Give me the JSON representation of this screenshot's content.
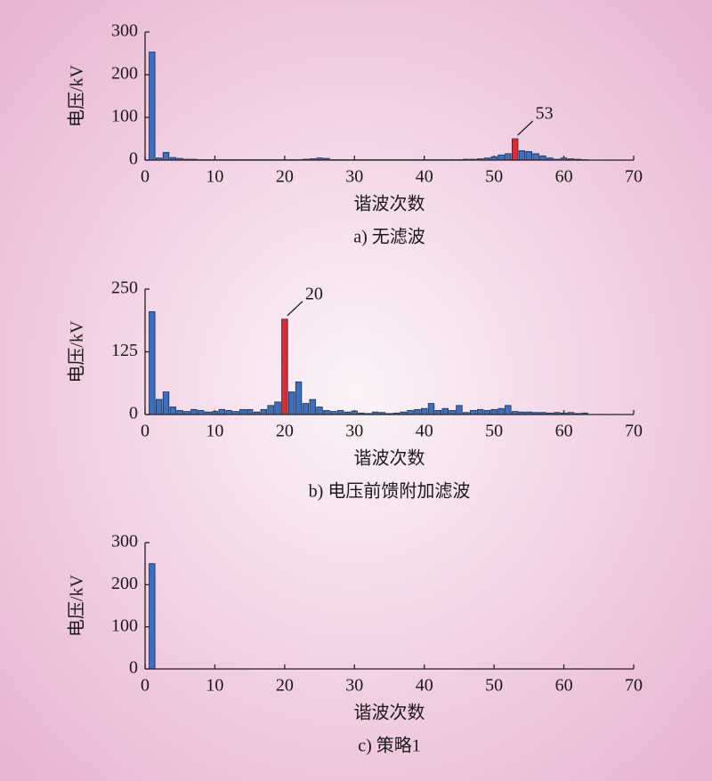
{
  "chart_data": [
    {
      "type": "bar",
      "caption": "a) 无滤波",
      "xlabel": "谐波次数",
      "ylabel": "电压/kV",
      "x": [
        1,
        2,
        3,
        4,
        5,
        6,
        7,
        8,
        9,
        10,
        11,
        12,
        13,
        14,
        15,
        16,
        17,
        18,
        19,
        20,
        21,
        22,
        23,
        24,
        25,
        26,
        27,
        28,
        29,
        30,
        31,
        32,
        33,
        34,
        35,
        36,
        37,
        38,
        39,
        40,
        41,
        42,
        43,
        44,
        45,
        46,
        47,
        48,
        49,
        50,
        51,
        52,
        53,
        54,
        55,
        56,
        57,
        58,
        59,
        60,
        61,
        62,
        63
      ],
      "values": [
        253,
        5,
        18,
        6,
        4,
        2,
        2,
        1,
        1,
        1,
        1,
        1,
        1,
        1,
        1,
        1,
        1,
        1,
        1,
        1,
        1,
        1,
        2,
        3,
        5,
        4,
        1,
        1,
        1,
        1,
        1,
        1,
        1,
        1,
        1,
        1,
        1,
        1,
        1,
        1,
        1,
        1,
        1,
        1,
        1,
        2,
        2,
        3,
        5,
        8,
        12,
        15,
        50,
        22,
        20,
        15,
        10,
        5,
        2,
        5,
        3,
        2,
        1
      ],
      "color": "#3b6fc0",
      "highlight_color": "#e02a30",
      "annotation": {
        "x": 53,
        "text": "53"
      },
      "xlim": [
        0,
        70
      ],
      "xticks": [
        0,
        10,
        20,
        30,
        40,
        50,
        60,
        70
      ],
      "ylim": [
        0,
        300
      ],
      "yticks": [
        0,
        100,
        200,
        300
      ]
    },
    {
      "type": "bar",
      "caption": "b) 电压前馈附加滤波",
      "xlabel": "谐波次数",
      "ylabel": "电压/kV",
      "x": [
        1,
        2,
        3,
        4,
        5,
        6,
        7,
        8,
        9,
        10,
        11,
        12,
        13,
        14,
        15,
        16,
        17,
        18,
        19,
        20,
        21,
        22,
        23,
        24,
        25,
        26,
        27,
        28,
        29,
        30,
        31,
        32,
        33,
        34,
        35,
        36,
        37,
        38,
        39,
        40,
        41,
        42,
        43,
        44,
        45,
        46,
        47,
        48,
        49,
        50,
        51,
        52,
        53,
        54,
        55,
        56,
        57,
        58,
        59,
        60,
        61,
        62,
        63
      ],
      "values": [
        205,
        30,
        45,
        15,
        8,
        6,
        10,
        8,
        5,
        6,
        10,
        8,
        6,
        10,
        10,
        5,
        10,
        18,
        25,
        190,
        45,
        65,
        22,
        30,
        15,
        8,
        6,
        8,
        5,
        7,
        3,
        2,
        5,
        4,
        2,
        3,
        5,
        8,
        10,
        12,
        22,
        8,
        12,
        8,
        18,
        4,
        8,
        10,
        8,
        10,
        12,
        18,
        6,
        5,
        5,
        4,
        4,
        3,
        4,
        3,
        4,
        2,
        3
      ],
      "color": "#3b6fc0",
      "highlight_color": "#e02a30",
      "annotation": {
        "x": 20,
        "text": "20"
      },
      "xlim": [
        0,
        70
      ],
      "xticks": [
        0,
        10,
        20,
        30,
        40,
        50,
        60,
        70
      ],
      "ylim": [
        0,
        250
      ],
      "yticks": [
        0,
        125,
        250
      ]
    },
    {
      "type": "bar",
      "caption": "c) 策略1",
      "xlabel": "谐波次数",
      "ylabel": "电压/kV",
      "x": [
        1
      ],
      "values": [
        250
      ],
      "color": "#3b6fc0",
      "xlim": [
        0,
        70
      ],
      "xticks": [
        0,
        10,
        20,
        30,
        40,
        50,
        60,
        70
      ],
      "ylim": [
        0,
        300
      ],
      "yticks": [
        0,
        100,
        200,
        300
      ]
    }
  ]
}
